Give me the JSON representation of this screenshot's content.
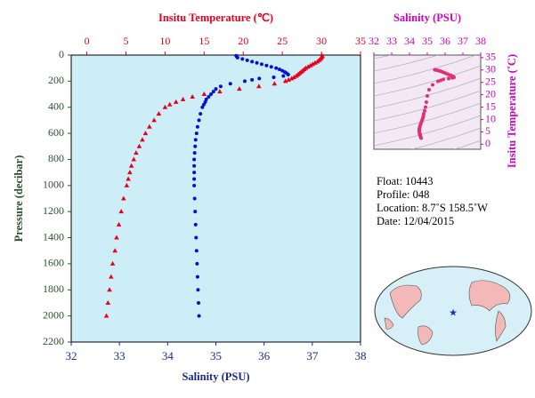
{
  "chart_data": {
    "type": "profile",
    "pressure": [
      5,
      10,
      20,
      30,
      40,
      50,
      60,
      70,
      80,
      90,
      100,
      110,
      120,
      130,
      140,
      150,
      160,
      170,
      180,
      190,
      200,
      220,
      240,
      260,
      280,
      300,
      320,
      340,
      360,
      380,
      400,
      450,
      500,
      550,
      600,
      650,
      700,
      750,
      800,
      850,
      900,
      950,
      1000,
      1100,
      1200,
      1300,
      1400,
      1500,
      1600,
      1700,
      1800,
      1900,
      2000
    ],
    "pressure_axis": {
      "label": "Pressure (decibar)",
      "color": "#2b4f2b",
      "lim": [
        0,
        2200
      ],
      "ticks": [
        0,
        200,
        400,
        600,
        800,
        1000,
        1200,
        1400,
        1600,
        1800,
        2000,
        2200
      ]
    },
    "temperature": {
      "label": "Insitu Temperature (℃)",
      "color": "#e8001c",
      "lim": [
        -2,
        35
      ],
      "ticks": [
        0,
        5,
        10,
        15,
        20,
        25,
        30,
        35
      ],
      "values": [
        30.1,
        30.1,
        30.0,
        29.9,
        29.7,
        29.5,
        29.2,
        28.9,
        28.6,
        28.3,
        28.0,
        27.8,
        27.6,
        27.4,
        27.2,
        27.0,
        26.8,
        26.5,
        26.2,
        25.8,
        25.4,
        24.0,
        22.0,
        19.5,
        17.0,
        15.0,
        13.5,
        12.3,
        11.4,
        10.6,
        10.0,
        9.2,
        8.6,
        8.0,
        7.5,
        7.1,
        6.7,
        6.3,
        6.0,
        5.7,
        5.5,
        5.3,
        5.1,
        4.7,
        4.4,
        4.1,
        3.8,
        3.6,
        3.3,
        3.1,
        2.9,
        2.7,
        2.5
      ]
    },
    "salinity": {
      "label": "Salinity (PSU)",
      "color": "#0010d8",
      "axis_color": "#1a2a8a",
      "lim": [
        32,
        38
      ],
      "ticks": [
        32,
        33,
        34,
        35,
        36,
        37,
        38
      ],
      "values": [
        35.42,
        35.43,
        35.45,
        35.55,
        35.65,
        35.75,
        35.85,
        35.95,
        36.05,
        36.15,
        36.25,
        36.32,
        36.38,
        36.43,
        36.47,
        36.5,
        36.4,
        36.2,
        35.9,
        35.75,
        35.6,
        35.3,
        35.1,
        35.0,
        34.95,
        34.9,
        34.85,
        34.8,
        34.78,
        34.75,
        34.72,
        34.68,
        34.65,
        34.62,
        34.6,
        34.58,
        34.57,
        34.56,
        34.55,
        34.55,
        34.55,
        34.55,
        34.55,
        34.56,
        34.57,
        34.58,
        34.59,
        34.6,
        34.61,
        34.62,
        34.63,
        34.64,
        34.65
      ]
    },
    "inset": {
      "type": "ts",
      "color": "#e0307a",
      "axis_color": "#d000c0",
      "salinity_label": "Salinity (PSU)",
      "temperature_label": "Insitu Temperature (˚C)",
      "xlim": [
        32,
        38
      ],
      "xticks": [
        32,
        33,
        34,
        35,
        36,
        37,
        38
      ],
      "ylim": [
        -2,
        36
      ],
      "yticks": [
        0,
        5,
        10,
        15,
        20,
        25,
        30,
        35
      ]
    },
    "info": [
      "Float:  10443",
      "Profile:  048",
      "Location:  8.7˚S  158.5˚W",
      "Date:  12/04/2015"
    ]
  }
}
